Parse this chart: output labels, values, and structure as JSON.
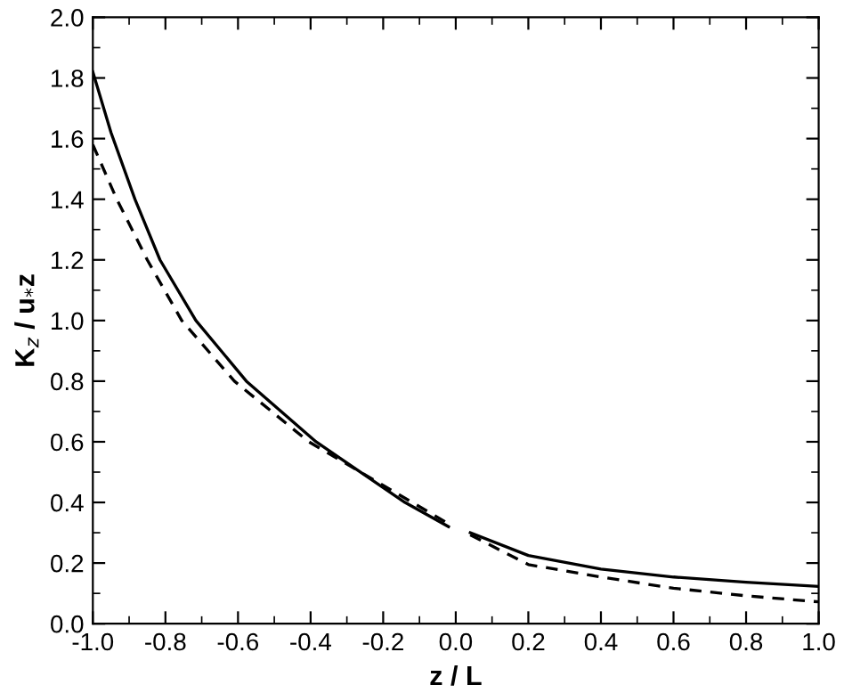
{
  "chart_data": {
    "type": "line",
    "xlabel": "z / L",
    "ylabel": "K$_{z}$ / u$_{*}$z",
    "series": [
      {
        "color": "#000000",
        "line_style": "solid",
        "x": [
          -1.0,
          -0.95,
          -0.884,
          -0.815,
          -0.716,
          -0.577,
          -0.385,
          -0.14,
          -0.02,
          0.0,
          0.04,
          0.2,
          0.4,
          0.6,
          0.8,
          1.0
        ],
        "values": [
          1.82,
          1.62,
          1.4,
          1.2,
          1.0,
          0.8,
          0.6,
          0.4,
          0.32,
          null,
          0.3,
          0.225,
          0.18,
          0.154,
          0.137,
          0.123
        ]
      },
      {
        "color": "#000000",
        "line_style": "dashed",
        "x": [
          -1.0,
          -0.934,
          -0.85,
          -0.755,
          -0.61,
          -0.405,
          -0.12,
          -0.02,
          0.0,
          0.04,
          0.2,
          0.4,
          0.6,
          0.8,
          1.0
        ],
        "values": [
          1.58,
          1.4,
          1.2,
          1.0,
          0.8,
          0.6,
          0.4,
          0.33,
          null,
          0.293,
          0.195,
          0.154,
          0.117,
          0.092,
          0.072
        ]
      }
    ],
    "xlim": [
      -1.0,
      1.0
    ],
    "ylim": [
      0.0,
      2.0
    ],
    "xticks": [
      {
        "value": -1.0,
        "label": "-1.0"
      },
      {
        "value": -0.8,
        "label": "-0.8"
      },
      {
        "value": -0.6,
        "label": "-0.6"
      },
      {
        "value": -0.4,
        "label": "-0.4"
      },
      {
        "value": -0.2,
        "label": "-0.2"
      },
      {
        "value": 0.0,
        "label": "0.0"
      },
      {
        "value": 0.2,
        "label": "0.2"
      },
      {
        "value": 0.4,
        "label": "0.4"
      },
      {
        "value": 0.6,
        "label": "0.6"
      },
      {
        "value": 0.8,
        "label": "0.8"
      },
      {
        "value": 1.0,
        "label": "1.0"
      }
    ],
    "yticks": [
      {
        "value": 0.0,
        "label": "0.0"
      },
      {
        "value": 0.2,
        "label": "0.2"
      },
      {
        "value": 0.4,
        "label": "0.4"
      },
      {
        "value": 0.6,
        "label": "0.6"
      },
      {
        "value": 0.8,
        "label": "0.8"
      },
      {
        "value": 1.0,
        "label": "1.0"
      },
      {
        "value": 1.2,
        "label": "1.2"
      },
      {
        "value": 1.4,
        "label": "1.4"
      },
      {
        "value": 1.6,
        "label": "1.6"
      },
      {
        "value": 1.8,
        "label": "1.8"
      },
      {
        "value": 2.0,
        "label": "2.0"
      }
    ],
    "grid": false,
    "legend": false,
    "marker": "none"
  }
}
